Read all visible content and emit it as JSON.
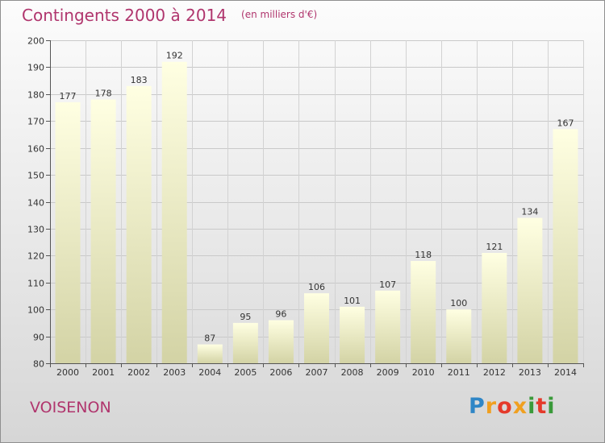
{
  "header": {
    "title": "Contingents 2000 à 2014",
    "subtitle": "(en milliers d'€)"
  },
  "footer": {
    "commune": "VOISENON",
    "logo": "Proxiti"
  },
  "colors": {
    "title": "#b0356d",
    "bar_light": "#ffffe0",
    "bar_dark": "#d4d4a6",
    "grid": "#c8c8c8"
  },
  "chart_data": {
    "type": "bar",
    "title": "Contingents 2000 à 2014",
    "subtitle": "(en milliers d'€)",
    "categories": [
      "2000",
      "2001",
      "2002",
      "2003",
      "2004",
      "2005",
      "2006",
      "2007",
      "2008",
      "2009",
      "2010",
      "2011",
      "2012",
      "2013",
      "2014"
    ],
    "values": [
      177,
      178,
      183,
      192,
      87,
      95,
      96,
      106,
      101,
      107,
      118,
      100,
      121,
      134,
      167
    ],
    "ylim": [
      80,
      200
    ],
    "yticks": [
      80,
      90,
      100,
      110,
      120,
      130,
      140,
      150,
      160,
      170,
      180,
      190,
      200
    ],
    "grid": true,
    "data_labels": true,
    "xlabel": "",
    "ylabel": ""
  }
}
